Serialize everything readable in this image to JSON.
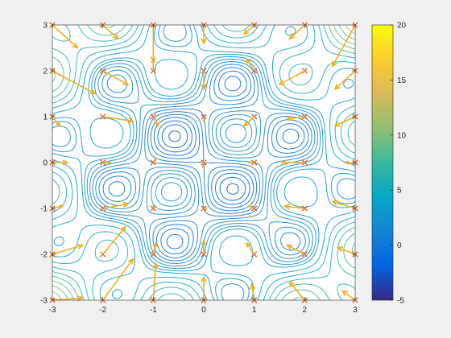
{
  "chart_data": {
    "type": "contour",
    "title": "",
    "xlabel": "",
    "ylabel": "",
    "xlim": [
      -3,
      3
    ],
    "ylim": [
      -3,
      3
    ],
    "x_ticks": [
      "-3",
      "-2",
      "-1",
      "0",
      "1",
      "2",
      "3"
    ],
    "y_ticks": [
      "-3",
      "-2",
      "-1",
      "0",
      "1",
      "2",
      "3"
    ],
    "grid": false,
    "legend": "none",
    "contour": {
      "function": "x^2/2 + y^2/2 + 3*sin(2.6x)*sin(2.6y)",
      "levels_approx": [
        -4.5,
        -4,
        -3.5,
        -3,
        -2.5,
        -2,
        -1.5,
        -1,
        -0.5,
        0,
        0.5,
        1,
        1.5,
        2,
        2.5,
        3,
        4,
        5,
        6,
        7,
        8,
        9,
        10,
        11,
        12,
        13,
        14,
        15,
        16,
        17,
        18
      ]
    },
    "colorbar": {
      "min": -5,
      "max": 20,
      "ticks": [
        "20",
        "15",
        "10",
        "5",
        "0",
        "-5"
      ],
      "colormap": "parula",
      "location": "right"
    },
    "sample_points": {
      "x": [
        -3,
        -2,
        -1,
        0,
        1,
        2,
        3
      ],
      "y": [
        -3,
        -2,
        -1,
        0,
        1,
        2,
        3
      ],
      "marker": "x",
      "marker_color": "#d95319"
    },
    "quiver": {
      "color": "#edb120",
      "vectors": [
        {
          "x": -3,
          "y": 3,
          "u": 0.5,
          "v": -0.5
        },
        {
          "x": -2,
          "y": 3,
          "u": 0.3,
          "v": -0.3
        },
        {
          "x": -1,
          "y": 3,
          "u": 0.0,
          "v": -0.8
        },
        {
          "x": 0,
          "y": 3,
          "u": 0.0,
          "v": -0.4
        },
        {
          "x": 1,
          "y": 3,
          "u": -0.2,
          "v": -0.2
        },
        {
          "x": 2,
          "y": 3,
          "u": -0.3,
          "v": -0.3
        },
        {
          "x": 3,
          "y": 3,
          "u": -0.45,
          "v": -0.9
        },
        {
          "x": -3,
          "y": 2,
          "u": 0.85,
          "v": -0.5
        },
        {
          "x": -2,
          "y": 2,
          "u": 0.5,
          "v": -0.3
        },
        {
          "x": -1,
          "y": 2,
          "u": 0.0,
          "v": 0.25
        },
        {
          "x": 0,
          "y": 2,
          "u": 0.0,
          "v": -0.4
        },
        {
          "x": 1,
          "y": 2,
          "u": -0.15,
          "v": 0.25
        },
        {
          "x": 2,
          "y": 2,
          "u": -0.5,
          "v": -0.3
        },
        {
          "x": 3,
          "y": 2,
          "u": -0.4,
          "v": -0.4
        },
        {
          "x": -3,
          "y": 1,
          "u": 0.15,
          "v": -0.2
        },
        {
          "x": -2,
          "y": 1,
          "u": 0.6,
          "v": -0.1
        },
        {
          "x": -1,
          "y": 1,
          "u": 0.1,
          "v": -0.2
        },
        {
          "x": 0,
          "y": 1,
          "u": 0.0,
          "v": -0.1
        },
        {
          "x": 1,
          "y": 1,
          "u": -0.2,
          "v": -0.2
        },
        {
          "x": 2,
          "y": 1,
          "u": -0.35,
          "v": -0.05
        },
        {
          "x": 3,
          "y": 1,
          "u": -0.4,
          "v": -0.2
        },
        {
          "x": -3,
          "y": 0,
          "u": 0.3,
          "v": 0.0
        },
        {
          "x": -2,
          "y": 0,
          "u": 0.15,
          "v": 0.0
        },
        {
          "x": -1,
          "y": 0,
          "u": 0.05,
          "v": 0.1
        },
        {
          "x": 0,
          "y": 0,
          "u": -0.02,
          "v": -0.1
        },
        {
          "x": 1,
          "y": 0,
          "u": -0.1,
          "v": 0.0
        },
        {
          "x": 2,
          "y": 0,
          "u": -0.45,
          "v": 0.0
        },
        {
          "x": 3,
          "y": 0,
          "u": -0.2,
          "v": 0.0
        },
        {
          "x": -3,
          "y": -1,
          "u": 0.2,
          "v": 0.05
        },
        {
          "x": -2,
          "y": -1,
          "u": 0.5,
          "v": 0.1
        },
        {
          "x": -1,
          "y": -1,
          "u": 0.0,
          "v": 0.05
        },
        {
          "x": 0,
          "y": -1,
          "u": 0.05,
          "v": 0.0
        },
        {
          "x": 1,
          "y": -1,
          "u": -0.1,
          "v": 0.05
        },
        {
          "x": 2,
          "y": -1,
          "u": -0.4,
          "v": 0.05
        },
        {
          "x": 3,
          "y": -1,
          "u": -0.45,
          "v": 0.15
        },
        {
          "x": -3,
          "y": -2,
          "u": 0.6,
          "v": 0.2
        },
        {
          "x": -2,
          "y": -2,
          "u": 0.45,
          "v": 0.6
        },
        {
          "x": -1,
          "y": -2,
          "u": 0.05,
          "v": 0.25
        },
        {
          "x": 0,
          "y": -2,
          "u": 0.0,
          "v": 0.3
        },
        {
          "x": 1,
          "y": -2,
          "u": -0.15,
          "v": 0.25
        },
        {
          "x": 2,
          "y": -2,
          "u": -0.35,
          "v": 0.2
        },
        {
          "x": 3,
          "y": -2,
          "u": -0.35,
          "v": 0.15
        },
        {
          "x": -3,
          "y": -3,
          "u": 0.6,
          "v": 0.05
        },
        {
          "x": -2,
          "y": -3,
          "u": 0.6,
          "v": 0.9
        },
        {
          "x": -1,
          "y": -3,
          "u": 0.05,
          "v": 0.8
        },
        {
          "x": 0,
          "y": -3,
          "u": 0.0,
          "v": 0.5
        },
        {
          "x": 1,
          "y": -3,
          "u": -0.05,
          "v": 0.35
        },
        {
          "x": 2,
          "y": -3,
          "u": -0.3,
          "v": 0.4
        },
        {
          "x": 3,
          "y": -3,
          "u": -0.25,
          "v": 0.2
        }
      ]
    }
  }
}
